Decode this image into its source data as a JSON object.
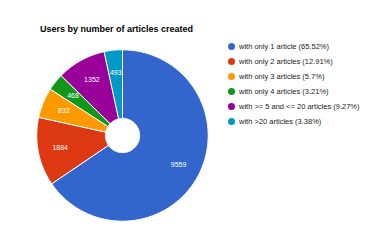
{
  "chart_data": {
    "type": "pie",
    "title": "Users by number of articles created",
    "categories": [
      "with only 1 article (65.52%)",
      "with only 2 articles (12.91%)",
      "with only 3 articles (5.7%)",
      "with only 4 articles (3.21%)",
      "with >= 5 and <= 20 articles (9.27%)",
      "with >20 articles (3.38%)"
    ],
    "values": [
      9559,
      1884,
      832,
      468,
      1352,
      493
    ],
    "colors": [
      "#3366cc",
      "#dc3912",
      "#ff9900",
      "#109618",
      "#990099",
      "#0099c6"
    ],
    "data_labels": true,
    "legend": "right"
  }
}
